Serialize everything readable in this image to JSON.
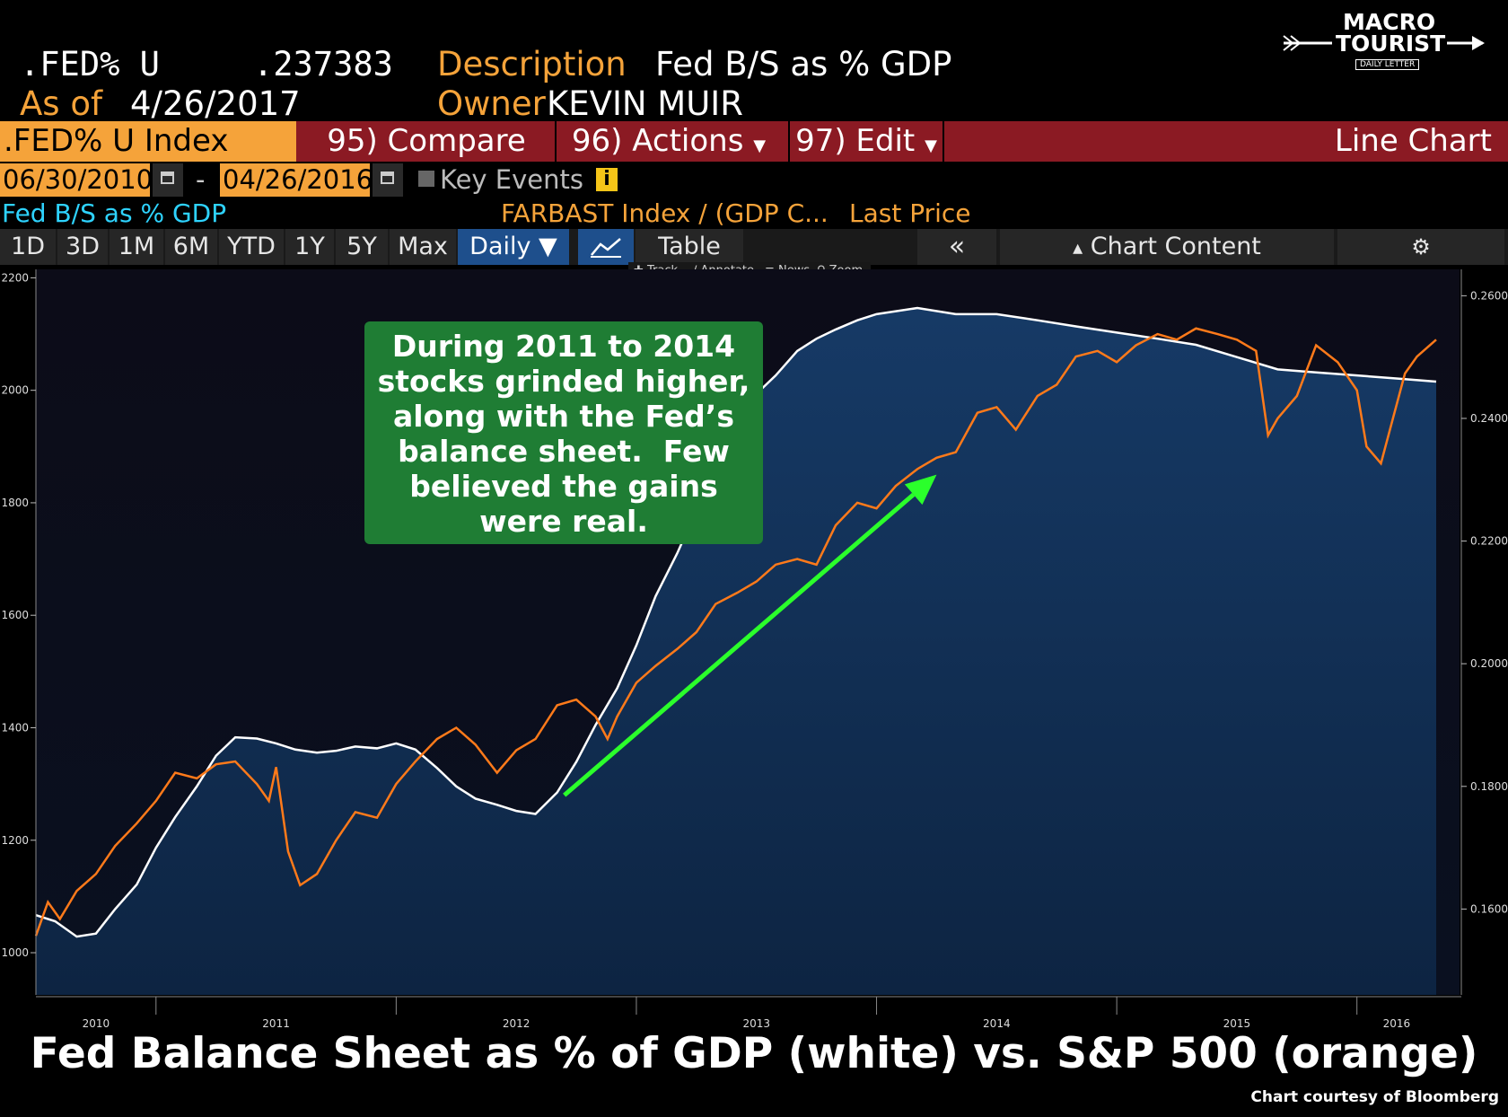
{
  "header": {
    "ticker": ".FED% U",
    "value": ".237383",
    "as_of_label": "As of",
    "as_of_date": "4/26/2017",
    "description_label": "Description",
    "description": "Fed B/S as % GDP",
    "owner_label": "Owner",
    "owner": "KEVIN MUIR"
  },
  "logo": {
    "line1": "MACRO",
    "line2": "TOURIST",
    "line3": "DAILY LETTER"
  },
  "toolbar": {
    "index": ".FED% U Index",
    "compare": "95) Compare",
    "actions": "96) Actions",
    "edit": "97) Edit",
    "chart_type": "Line Chart"
  },
  "range": {
    "start": "06/30/2010",
    "end": "04/26/2016",
    "separator": "-",
    "key_events": "Key Events",
    "info": "i"
  },
  "series_labels": {
    "left": "Fed B/S as % GDP",
    "right": "FARBAST Index / (GDP C...",
    "price": "Last Price"
  },
  "tabs": [
    "1D",
    "3D",
    "1M",
    "6M",
    "YTD",
    "1Y",
    "5Y",
    "Max",
    "Daily ▼",
    "",
    "Table",
    "«",
    "Chart Content",
    "⚙"
  ],
  "subtools": [
    "Track",
    "Annotate",
    "News",
    "Zoom"
  ],
  "annotation": [
    "During 2011 to 2014",
    "stocks grinded higher,",
    "along with the Fed’s",
    "balance sheet.  Few",
    "believed the gains",
    "were real."
  ],
  "caption": "Fed Balance Sheet as % of GDP (white) vs. S&P 500 (orange)",
  "credit": "Chart courtesy of Bloomberg",
  "colors": {
    "orange": "#f5a33a",
    "toolbar": "#8b1a23",
    "note": "#1f7d34",
    "arrow": "#2bff2b",
    "fill": "#0f2a4e",
    "sp500": "#ff7a1a"
  },
  "chart_data": {
    "type": "line",
    "x_ticks": [
      "2010",
      "2011",
      "2012",
      "2013",
      "2014",
      "2015",
      "2016"
    ],
    "x_range": [
      2010.5,
      2016.33
    ],
    "left_axis": {
      "ticks": [
        1000,
        1200,
        1400,
        1600,
        1800,
        2000,
        2200
      ],
      "range": [
        925,
        2215
      ]
    },
    "right_axis": {
      "ticks": [
        "0.1600",
        "0.1800",
        "0.2000",
        "0.2200",
        "0.2400",
        "0.2600"
      ],
      "range": [
        0.146,
        0.2643
      ]
    },
    "series": [
      {
        "color": "white",
        "axis": "right",
        "points": [
          [
            2010.5,
            0.159
          ],
          [
            2010.58,
            0.158
          ],
          [
            2010.67,
            0.1555
          ],
          [
            2010.75,
            0.156
          ],
          [
            2010.83,
            0.16
          ],
          [
            2010.92,
            0.164
          ],
          [
            2011.0,
            0.17
          ],
          [
            2011.08,
            0.175
          ],
          [
            2011.17,
            0.18
          ],
          [
            2011.25,
            0.185
          ],
          [
            2011.33,
            0.188
          ],
          [
            2011.42,
            0.1878
          ],
          [
            2011.5,
            0.187
          ],
          [
            2011.58,
            0.186
          ],
          [
            2011.67,
            0.1855
          ],
          [
            2011.75,
            0.1858
          ],
          [
            2011.83,
            0.1865
          ],
          [
            2011.92,
            0.1862
          ],
          [
            2012.0,
            0.187
          ],
          [
            2012.08,
            0.186
          ],
          [
            2012.17,
            0.183
          ],
          [
            2012.25,
            0.18
          ],
          [
            2012.33,
            0.178
          ],
          [
            2012.42,
            0.177
          ],
          [
            2012.5,
            0.176
          ],
          [
            2012.58,
            0.1755
          ],
          [
            2012.67,
            0.179
          ],
          [
            2012.75,
            0.184
          ],
          [
            2012.83,
            0.19
          ],
          [
            2012.92,
            0.196
          ],
          [
            2013.0,
            0.203
          ],
          [
            2013.08,
            0.211
          ],
          [
            2013.17,
            0.218
          ],
          [
            2013.25,
            0.225
          ],
          [
            2013.33,
            0.233
          ],
          [
            2013.42,
            0.24
          ],
          [
            2013.5,
            0.244
          ],
          [
            2013.58,
            0.247
          ],
          [
            2013.67,
            0.251
          ],
          [
            2013.75,
            0.253
          ],
          [
            2013.83,
            0.2545
          ],
          [
            2013.92,
            0.256
          ],
          [
            2014.0,
            0.257
          ],
          [
            2014.17,
            0.258
          ],
          [
            2014.33,
            0.257
          ],
          [
            2014.5,
            0.257
          ],
          [
            2014.67,
            0.256
          ],
          [
            2014.83,
            0.255
          ],
          [
            2015.0,
            0.254
          ],
          [
            2015.17,
            0.253
          ],
          [
            2015.33,
            0.252
          ],
          [
            2015.5,
            0.25
          ],
          [
            2015.67,
            0.248
          ],
          [
            2015.83,
            0.2475
          ],
          [
            2016.0,
            0.247
          ],
          [
            2016.17,
            0.2465
          ],
          [
            2016.33,
            0.246
          ]
        ]
      },
      {
        "color": "orange",
        "axis": "left",
        "points": [
          [
            2010.5,
            1030
          ],
          [
            2010.55,
            1090
          ],
          [
            2010.6,
            1060
          ],
          [
            2010.67,
            1110
          ],
          [
            2010.75,
            1140
          ],
          [
            2010.83,
            1190
          ],
          [
            2010.92,
            1230
          ],
          [
            2011.0,
            1270
          ],
          [
            2011.08,
            1320
          ],
          [
            2011.17,
            1310
          ],
          [
            2011.25,
            1335
          ],
          [
            2011.33,
            1340
          ],
          [
            2011.42,
            1300
          ],
          [
            2011.47,
            1270
          ],
          [
            2011.5,
            1330
          ],
          [
            2011.55,
            1180
          ],
          [
            2011.6,
            1120
          ],
          [
            2011.67,
            1140
          ],
          [
            2011.75,
            1200
          ],
          [
            2011.83,
            1250
          ],
          [
            2011.92,
            1240
          ],
          [
            2012.0,
            1300
          ],
          [
            2012.08,
            1340
          ],
          [
            2012.17,
            1380
          ],
          [
            2012.25,
            1400
          ],
          [
            2012.33,
            1370
          ],
          [
            2012.42,
            1320
          ],
          [
            2012.5,
            1360
          ],
          [
            2012.58,
            1380
          ],
          [
            2012.67,
            1440
          ],
          [
            2012.75,
            1450
          ],
          [
            2012.83,
            1420
          ],
          [
            2012.88,
            1380
          ],
          [
            2012.92,
            1420
          ],
          [
            2013.0,
            1480
          ],
          [
            2013.08,
            1510
          ],
          [
            2013.17,
            1540
          ],
          [
            2013.25,
            1570
          ],
          [
            2013.33,
            1620
          ],
          [
            2013.42,
            1640
          ],
          [
            2013.5,
            1660
          ],
          [
            2013.58,
            1690
          ],
          [
            2013.67,
            1700
          ],
          [
            2013.75,
            1690
          ],
          [
            2013.83,
            1760
          ],
          [
            2013.92,
            1800
          ],
          [
            2014.0,
            1790
          ],
          [
            2014.08,
            1830
          ],
          [
            2014.17,
            1860
          ],
          [
            2014.25,
            1880
          ],
          [
            2014.33,
            1890
          ],
          [
            2014.42,
            1960
          ],
          [
            2014.5,
            1970
          ],
          [
            2014.58,
            1930
          ],
          [
            2014.67,
            1990
          ],
          [
            2014.75,
            2010
          ],
          [
            2014.83,
            2060
          ],
          [
            2014.92,
            2070
          ],
          [
            2015.0,
            2050
          ],
          [
            2015.08,
            2080
          ],
          [
            2015.17,
            2100
          ],
          [
            2015.25,
            2090
          ],
          [
            2015.33,
            2110
          ],
          [
            2015.42,
            2100
          ],
          [
            2015.5,
            2090
          ],
          [
            2015.58,
            2070
          ],
          [
            2015.63,
            1920
          ],
          [
            2015.67,
            1950
          ],
          [
            2015.75,
            1990
          ],
          [
            2015.83,
            2080
          ],
          [
            2015.92,
            2050
          ],
          [
            2016.0,
            2000
          ],
          [
            2016.04,
            1900
          ],
          [
            2016.1,
            1870
          ],
          [
            2016.15,
            1950
          ],
          [
            2016.2,
            2030
          ],
          [
            2016.25,
            2060
          ],
          [
            2016.33,
            2090
          ]
        ]
      }
    ],
    "annotation_arrow": {
      "from": [
        2012.7,
        1280
      ],
      "to": [
        2014.25,
        1850
      ]
    }
  }
}
